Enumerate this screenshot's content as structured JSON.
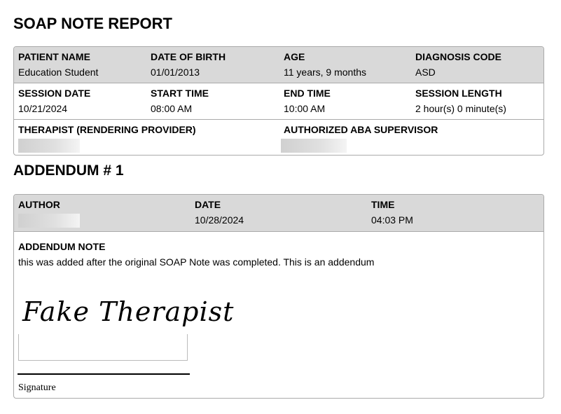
{
  "title": "SOAP NOTE REPORT",
  "info": {
    "patient_name": {
      "label": "PATIENT NAME",
      "value": "Education Student"
    },
    "dob": {
      "label": "DATE OF BIRTH",
      "value": "01/01/2013"
    },
    "age": {
      "label": "AGE",
      "value": "11 years, 9 months"
    },
    "diagnosis": {
      "label": "DIAGNOSIS CODE",
      "value": "ASD"
    },
    "session_date": {
      "label": "SESSION DATE",
      "value": "10/21/2024"
    },
    "start_time": {
      "label": "START TIME",
      "value": "08:00 AM"
    },
    "end_time": {
      "label": "END TIME",
      "value": "10:00 AM"
    },
    "session_length": {
      "label": "SESSION LENGTH",
      "value": "2 hour(s) 0 minute(s)"
    },
    "therapist": {
      "label": "THERAPIST (RENDERING PROVIDER)"
    },
    "supervisor": {
      "label": "AUTHORIZED ABA SUPERVISOR"
    }
  },
  "addendum": {
    "title": "ADDENDUM # 1",
    "author": {
      "label": "AUTHOR"
    },
    "date": {
      "label": "DATE",
      "value": "10/28/2024"
    },
    "time": {
      "label": "TIME",
      "value": "04:03 PM"
    },
    "note_label": "ADDENDUM NOTE",
    "note": "this was added after the original SOAP Note was completed. This is an addendum",
    "signature_image_text": "Fake Therapist",
    "signature_label": "Signature"
  }
}
